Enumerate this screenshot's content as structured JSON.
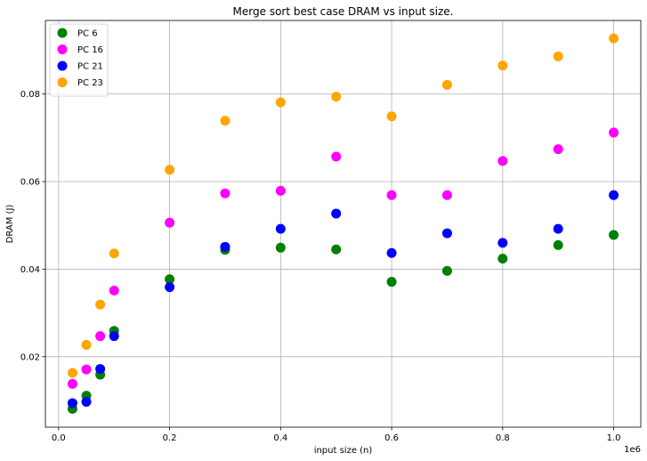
{
  "chart_data": {
    "type": "scatter",
    "title": "Merge sort best case DRAM vs input size.",
    "xlabel": "input size (n)",
    "ylabel": "DRAM (J)",
    "x_offset_label": "1e6",
    "xlim": [
      -0.0238,
      1.0488
    ],
    "ylim": [
      0.0039,
      0.0968
    ],
    "x_ticks": [
      0.0,
      0.2,
      0.4,
      0.6,
      0.8,
      1.0
    ],
    "x_tick_labels": [
      "0.0",
      "0.2",
      "0.4",
      "0.6",
      "0.8",
      "1.0"
    ],
    "y_ticks": [
      0.02,
      0.04,
      0.06,
      0.08
    ],
    "y_tick_labels": [
      "0.02",
      "0.04",
      "0.06",
      "0.08"
    ],
    "grid": true,
    "legend_position": "top-left",
    "x": [
      0.025,
      0.05,
      0.075,
      0.1,
      0.2,
      0.3,
      0.4,
      0.5,
      0.6,
      0.7,
      0.8,
      0.9,
      1.0
    ],
    "series": [
      {
        "name": "PC 6",
        "color": "#008000",
        "values": [
          0.0081,
          0.0111,
          0.0159,
          0.0259,
          0.0377,
          0.0444,
          0.0449,
          0.0445,
          0.0371,
          0.0396,
          0.0424,
          0.0455,
          0.0478
        ]
      },
      {
        "name": "PC 16",
        "color": "#ff00ff",
        "values": [
          0.0138,
          0.0171,
          0.0247,
          0.0351,
          0.0506,
          0.0573,
          0.0579,
          0.0657,
          0.0569,
          0.0569,
          0.0647,
          0.0674,
          0.0712
        ]
      },
      {
        "name": "PC 21",
        "color": "#0000ff",
        "values": [
          0.0094,
          0.0097,
          0.0172,
          0.0247,
          0.0359,
          0.0451,
          0.0492,
          0.0527,
          0.0437,
          0.0482,
          0.046,
          0.0492,
          0.0569
        ]
      },
      {
        "name": "PC 23",
        "color": "#ffa500",
        "values": [
          0.0163,
          0.0227,
          0.0319,
          0.0436,
          0.0627,
          0.0739,
          0.0781,
          0.0794,
          0.0749,
          0.0821,
          0.0865,
          0.0886,
          0.0927
        ]
      }
    ]
  }
}
